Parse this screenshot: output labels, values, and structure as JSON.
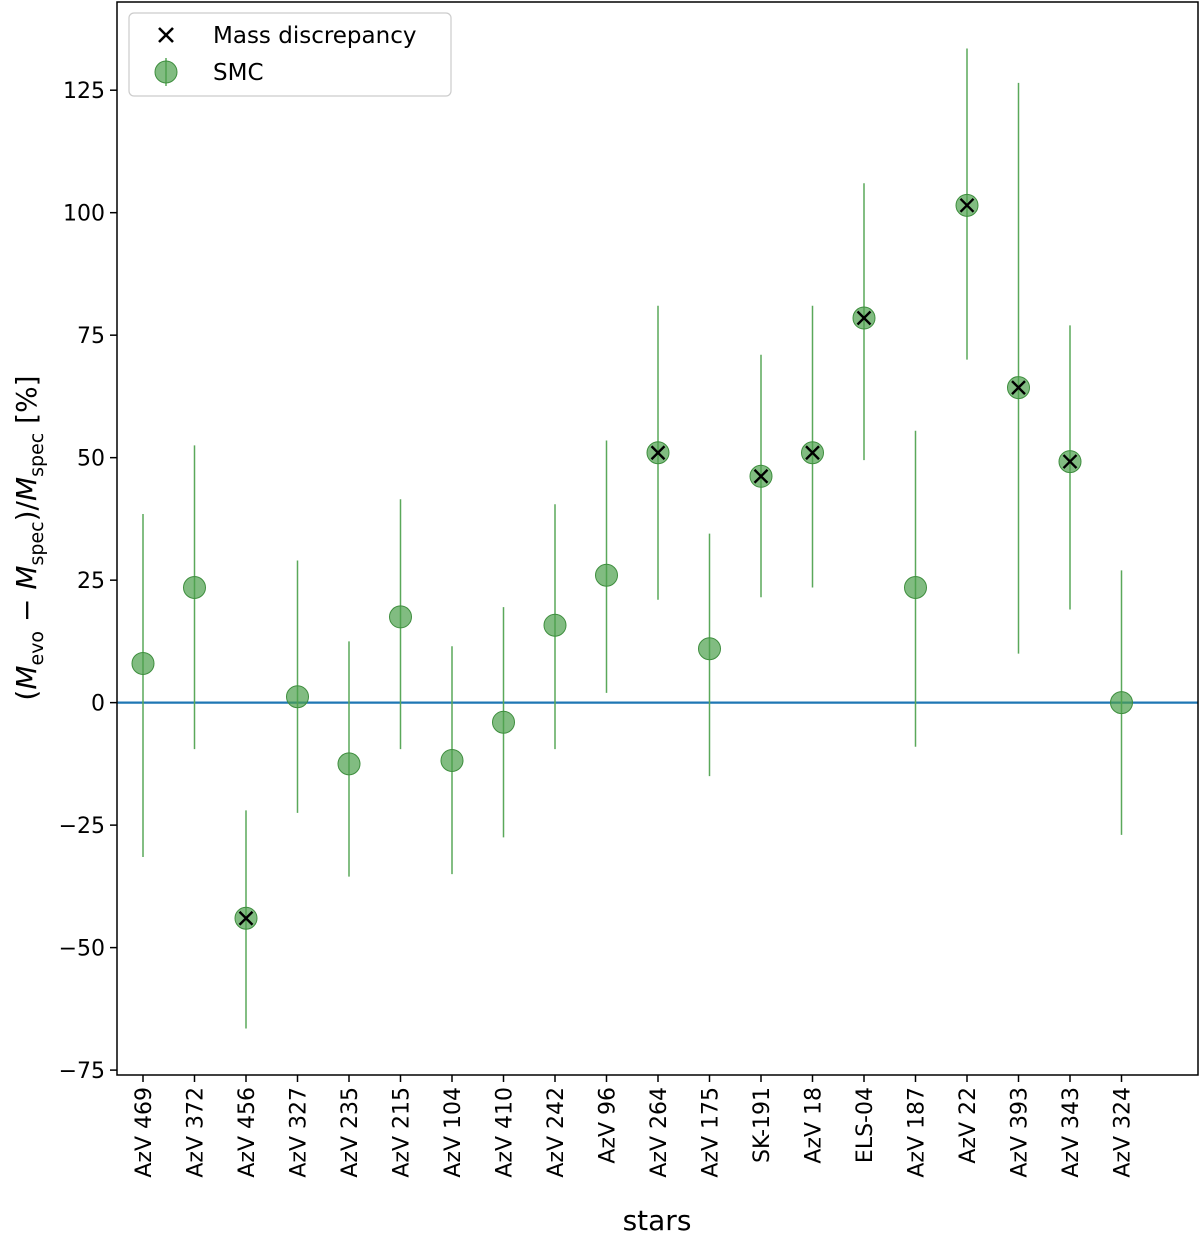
{
  "chart_data": {
    "type": "scatter",
    "title": "",
    "xlabel": "stars",
    "ylabel": {
      "lead": "(",
      "m1": "M",
      "s1": "evo",
      "minus": " − ",
      "m2": "M",
      "s2": "spec",
      "mid": ")/",
      "m3": "M",
      "s3": "spec",
      "unit": " [%]"
    },
    "ylim": [
      -76,
      143
    ],
    "yticks": [
      -75,
      -50,
      -25,
      0,
      25,
      50,
      75,
      100,
      125
    ],
    "ytick_labels": [
      "−75",
      "−50",
      "−25",
      "0",
      "25",
      "50",
      "75",
      "100",
      "125"
    ],
    "reference_line_y": 0,
    "colors": {
      "points": "#4c9f4c",
      "errorbars": "#5aa85a",
      "reference_line": "#1f77b4",
      "marker_cross": "#000000"
    },
    "legend": {
      "location": "upper-left",
      "entries": [
        {
          "label": "Mass discrepancy",
          "marker": "x"
        },
        {
          "label": "SMC",
          "marker": "circle-errorbar"
        }
      ]
    },
    "categories": [
      "AzV 469",
      "AzV 372",
      "AzV 456",
      "AzV 327",
      "AzV 235",
      "AzV 215",
      "AzV 104",
      "AzV 410",
      "AzV 242",
      "AzV 96",
      "AzV 264",
      "AzV 175",
      "SK-191",
      "AzV 18",
      "ELS-04",
      "AzV 187",
      "AzV 22",
      "AzV 393",
      "AzV 343",
      "AzV 324"
    ],
    "series": [
      {
        "name": "SMC",
        "values": [
          8,
          23.5,
          -44,
          1.2,
          -12.5,
          17.5,
          -11.8,
          -4,
          15.8,
          26,
          51,
          11,
          46.2,
          51,
          78.5,
          23.5,
          101.5,
          64.3,
          49.2,
          0
        ],
        "err_low": [
          -31.5,
          -9.5,
          -66.5,
          -22.5,
          -35.5,
          -9.5,
          -35,
          -27.5,
          -9.5,
          2,
          21,
          -15,
          21.5,
          23.5,
          49.5,
          -9,
          70,
          10,
          19,
          -27
        ],
        "err_high": [
          38.5,
          52.5,
          -22,
          29,
          12.5,
          41.5,
          11.5,
          19.5,
          40.5,
          53.5,
          81,
          34.5,
          71,
          81,
          106,
          55.5,
          133.5,
          126.5,
          77,
          27
        ]
      }
    ],
    "mass_discrepancy": [
      false,
      false,
      true,
      false,
      false,
      false,
      false,
      false,
      false,
      false,
      true,
      false,
      true,
      true,
      true,
      false,
      true,
      true,
      true,
      false
    ]
  }
}
